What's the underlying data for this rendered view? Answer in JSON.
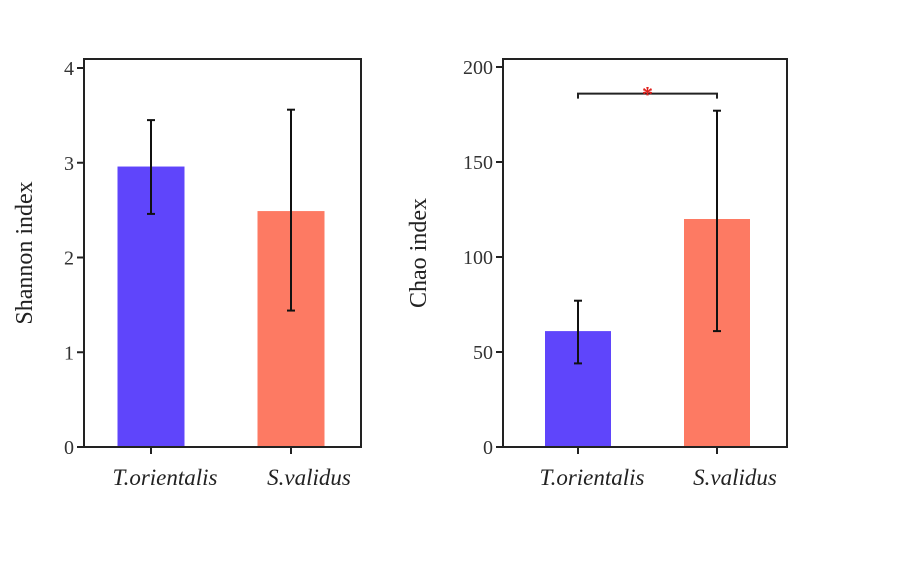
{
  "chart_data": [
    {
      "type": "bar",
      "title": "",
      "xlabel": "",
      "ylabel": "Shannon index",
      "ylim": [
        0,
        4
      ],
      "yticks": [
        0,
        1,
        2,
        3,
        4
      ],
      "grid": false,
      "categories": [
        "T.orientalis",
        "S.validus"
      ],
      "values": [
        2.96,
        2.49
      ],
      "error_upper": [
        3.45,
        3.56
      ],
      "error_lower": [
        2.46,
        1.44
      ],
      "colors": [
        "#5f45fb",
        "#fd7a63"
      ],
      "significance": []
    },
    {
      "type": "bar",
      "title": "",
      "xlabel": "",
      "ylabel": "Chao index",
      "ylim": [
        0,
        200
      ],
      "yticks": [
        0,
        50,
        100,
        150,
        200
      ],
      "grid": false,
      "categories": [
        "T.orientalis",
        "S.validus"
      ],
      "values": [
        61,
        120
      ],
      "error_upper": [
        77,
        177
      ],
      "error_lower": [
        44,
        61
      ],
      "colors": [
        "#5f45fb",
        "#fd7a63"
      ],
      "significance": [
        {
          "between": [
            "T.orientalis",
            "S.validus"
          ],
          "label": "*",
          "level": 186,
          "color": "#e0201c"
        }
      ]
    }
  ]
}
